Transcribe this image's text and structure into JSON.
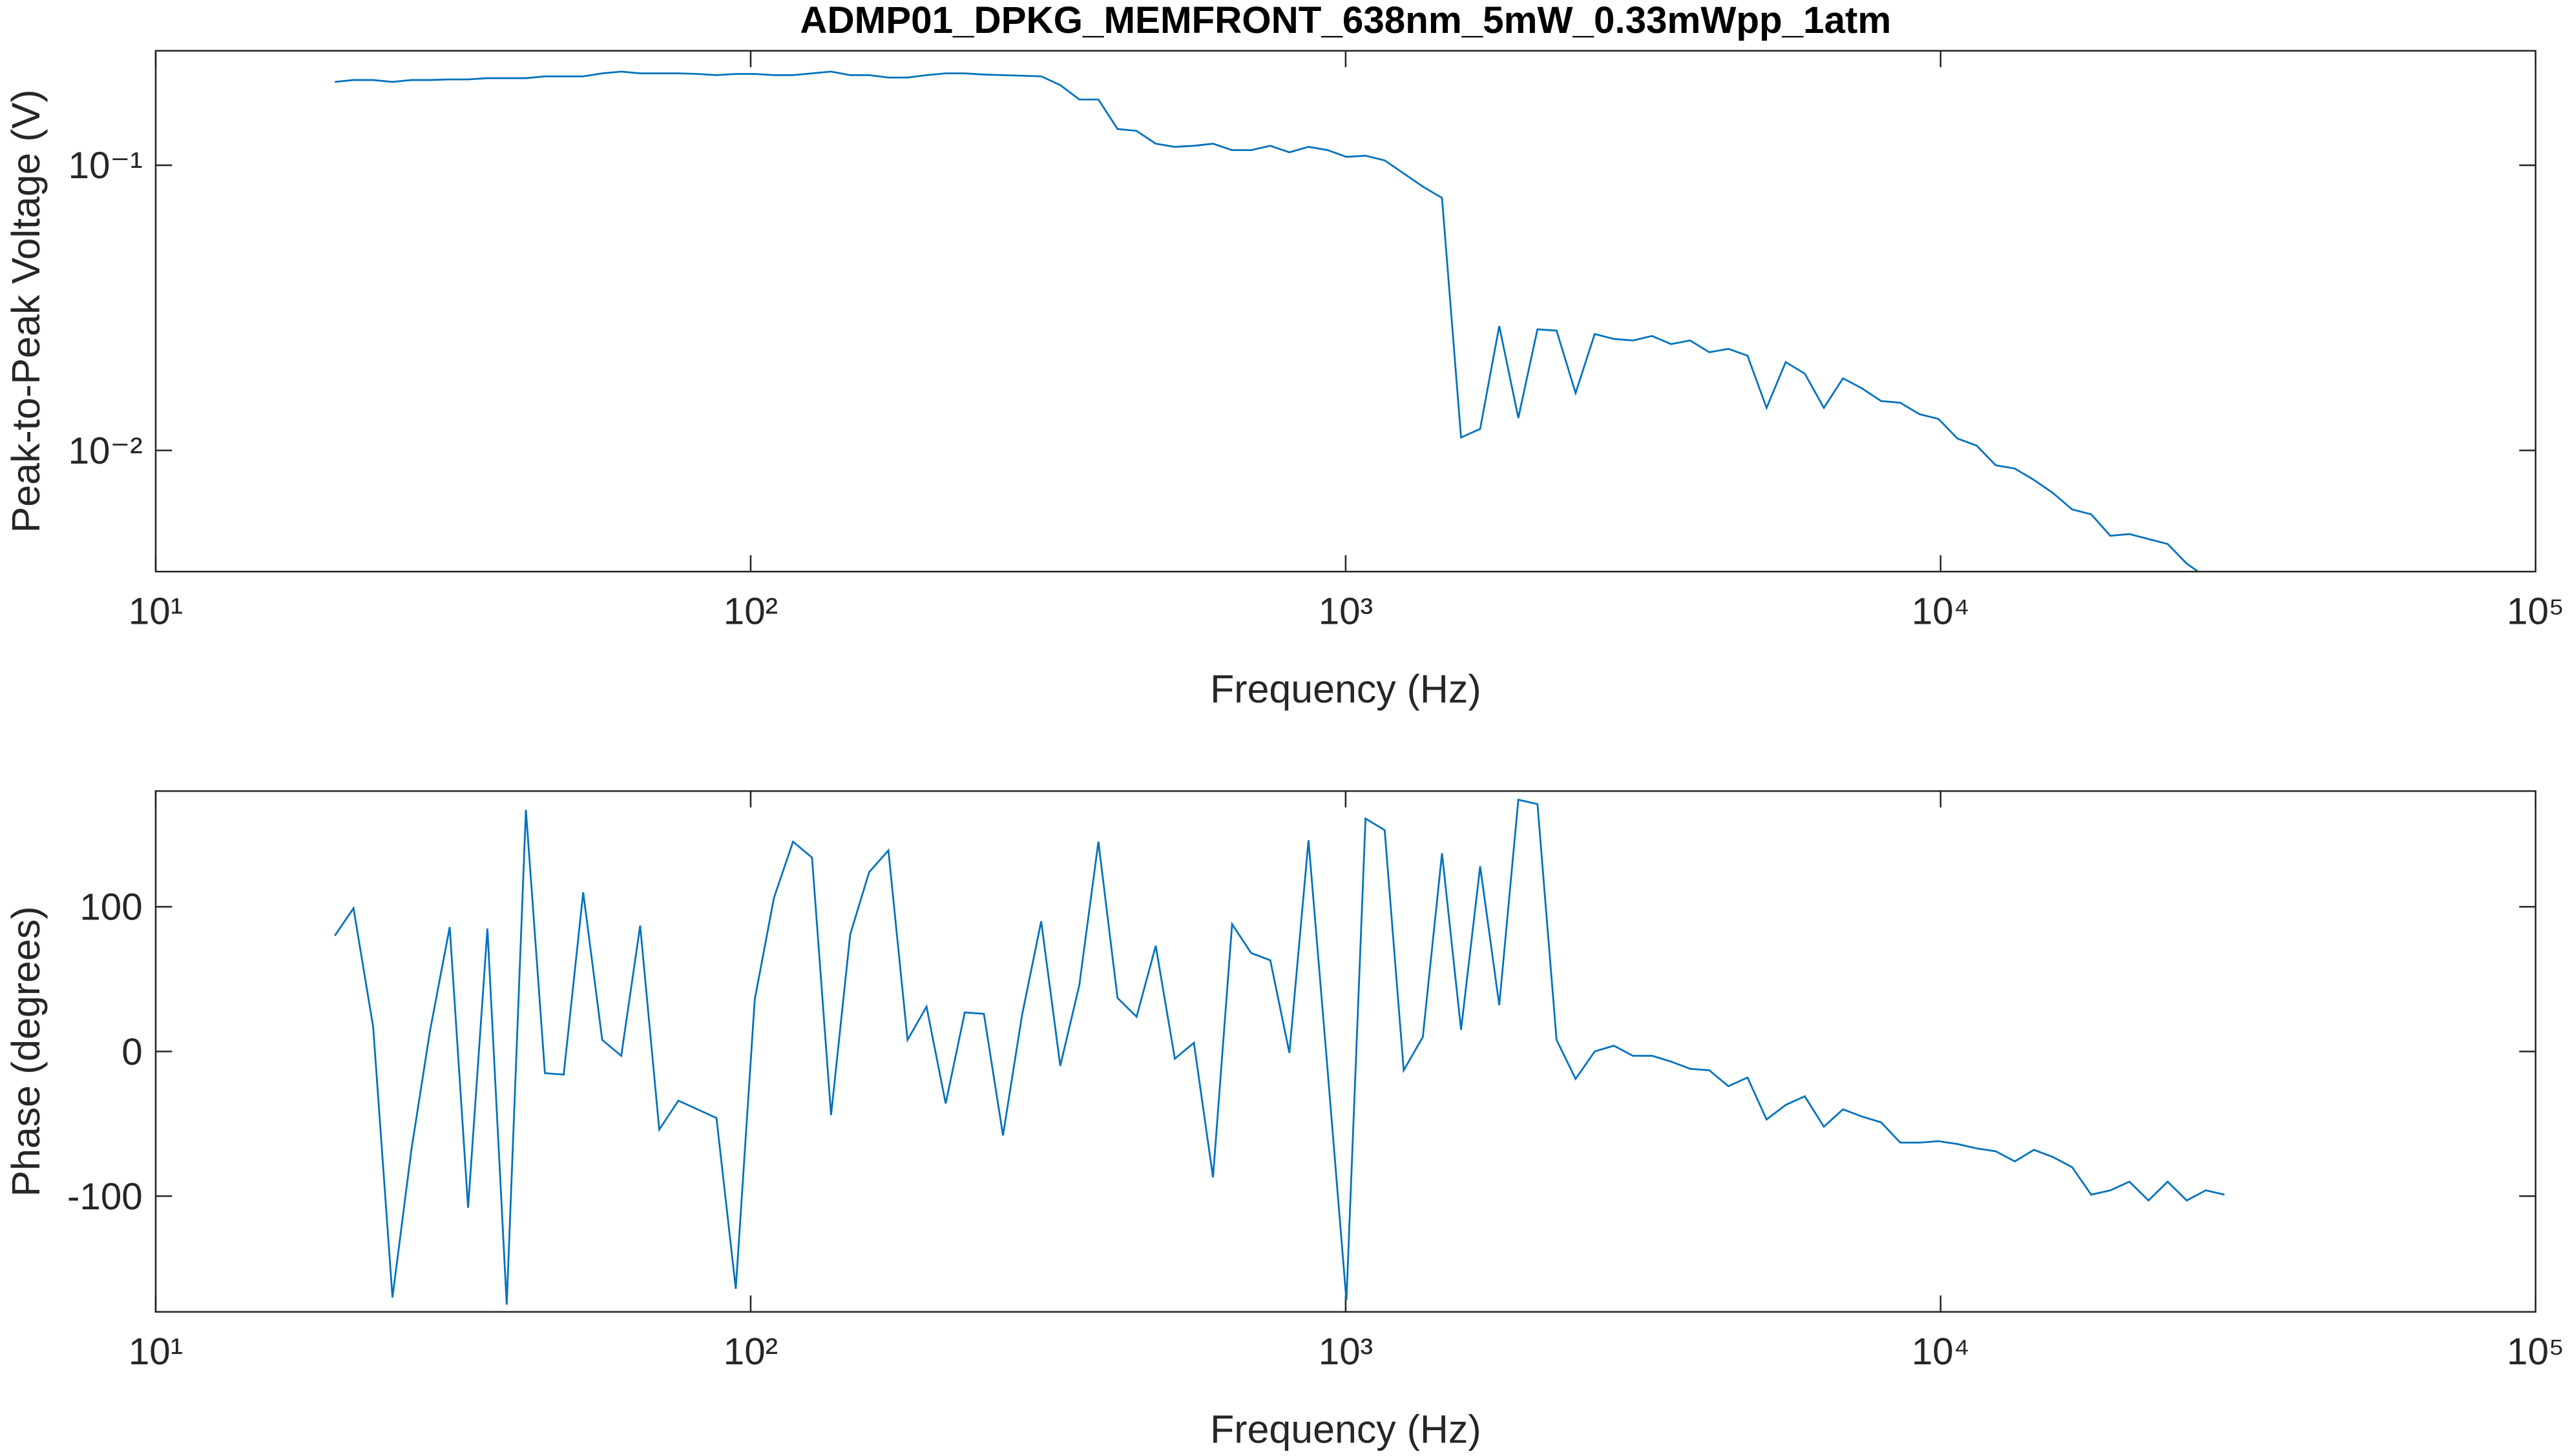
{
  "chart_data": [
    {
      "type": "line",
      "title": "ADMP01_DPKG_MEMFRONT_638nm_5mW_0.33mWpp_1atm",
      "xlabel": "Frequency (Hz)",
      "ylabel": "Peak-to-Peak Voltage (V)",
      "xscale": "log",
      "yscale": "log",
      "xlim": [
        10,
        100000
      ],
      "ylim": [
        0.00376,
        0.252
      ],
      "xticks": [
        {
          "value": 10,
          "label": "10¹"
        },
        {
          "value": 100,
          "label": "10²"
        },
        {
          "value": 1000,
          "label": "10³"
        },
        {
          "value": 10000,
          "label": "10⁴"
        },
        {
          "value": 100000,
          "label": "10⁵"
        }
      ],
      "yticks": [
        {
          "value": 0.01,
          "label": "10⁻²"
        },
        {
          "value": 0.1,
          "label": "10⁻¹"
        }
      ],
      "color": "#0072bd",
      "x": [
        20.0,
        21.5,
        23.2,
        25.0,
        26.9,
        28.9,
        31.2,
        33.5,
        36.1,
        38.9,
        41.9,
        45.1,
        48.5,
        52.3,
        56.3,
        60.6,
        65.2,
        70.2,
        75.6,
        81.4,
        87.6,
        94.4,
        101.6,
        109.4,
        117.8,
        126.8,
        136.5,
        147.0,
        158.2,
        170.4,
        183.5,
        197.5,
        212.7,
        229.0,
        246.6,
        265.5,
        285.8,
        307.8,
        331.4,
        356.8,
        384.1,
        413.6,
        445.3,
        479.5,
        516.3,
        555.9,
        598.5,
        644.4,
        693.9,
        747.1,
        804.4,
        866.1,
        932.6,
        1003,
        1080,
        1163,
        1252,
        1348,
        1452,
        1563,
        1683,
        1812,
        1951,
        2101,
        2262,
        2435,
        2622,
        2823,
        3040,
        3273,
        3524,
        3794,
        4085,
        4398,
        4736,
        5099,
        5490,
        5911,
        6365,
        6853,
        7378,
        7944,
        8554,
        9210,
        9916,
        10677,
        11496,
        12377,
        13327,
        14349,
        15450,
        16635,
        17911,
        19285,
        20764,
        22357,
        24072,
        25918,
        27906,
        30000
      ],
      "values": [
        0.196,
        0.199,
        0.199,
        0.196,
        0.199,
        0.199,
        0.2,
        0.2,
        0.202,
        0.202,
        0.202,
        0.205,
        0.205,
        0.205,
        0.21,
        0.213,
        0.21,
        0.21,
        0.21,
        0.209,
        0.207,
        0.209,
        0.209,
        0.207,
        0.207,
        0.21,
        0.213,
        0.207,
        0.207,
        0.203,
        0.203,
        0.207,
        0.21,
        0.21,
        0.208,
        0.207,
        0.206,
        0.205,
        0.191,
        0.17,
        0.17,
        0.134,
        0.132,
        0.119,
        0.116,
        0.117,
        0.119,
        0.113,
        0.113,
        0.117,
        0.111,
        0.116,
        0.113,
        0.107,
        0.108,
        0.104,
        0.0936,
        0.0842,
        0.0768,
        0.0111,
        0.0119,
        0.0273,
        0.013,
        0.0266,
        0.0263,
        0.0159,
        0.0256,
        0.0246,
        0.0243,
        0.0252,
        0.0236,
        0.0243,
        0.0221,
        0.0227,
        0.0215,
        0.0141,
        0.0204,
        0.0186,
        0.0141,
        0.0179,
        0.0165,
        0.0149,
        0.0147,
        0.0134,
        0.0129,
        0.011,
        0.0104,
        0.00887,
        0.00864,
        0.00788,
        0.00709,
        0.00621,
        0.00597,
        0.00502,
        0.00509,
        0.00489,
        0.0047,
        0.00401,
        0.0036,
        0.0033
      ]
    },
    {
      "type": "line",
      "xlabel": "Frequency (Hz)",
      "ylabel": "Phase (degrees)",
      "xscale": "log",
      "yscale": "linear",
      "xlim": [
        10,
        100000
      ],
      "ylim": [
        -180,
        180
      ],
      "xticks": [
        {
          "value": 10,
          "label": "10¹"
        },
        {
          "value": 100,
          "label": "10²"
        },
        {
          "value": 1000,
          "label": "10³"
        },
        {
          "value": 10000,
          "label": "10⁴"
        },
        {
          "value": 100000,
          "label": "10⁵"
        }
      ],
      "yticks": [
        -100,
        0,
        100
      ],
      "color": "#0072bd",
      "x": [
        20.0,
        21.5,
        23.2,
        25.0,
        26.9,
        28.9,
        31.2,
        33.5,
        36.1,
        38.9,
        41.9,
        45.1,
        48.5,
        52.3,
        56.3,
        60.6,
        65.2,
        70.2,
        75.6,
        81.4,
        87.6,
        94.4,
        101.6,
        109.4,
        117.8,
        126.8,
        136.5,
        147.0,
        158.2,
        170.4,
        183.5,
        197.5,
        212.7,
        229.0,
        246.6,
        265.5,
        285.8,
        307.8,
        331.4,
        356.8,
        384.1,
        413.6,
        445.3,
        479.5,
        516.3,
        555.9,
        598.5,
        644.4,
        693.9,
        747.1,
        804.4,
        866.1,
        932.6,
        1003,
        1080,
        1163,
        1252,
        1348,
        1452,
        1563,
        1683,
        1812,
        1951,
        2101,
        2262,
        2435,
        2622,
        2823,
        3040,
        3273,
        3524,
        3794,
        4085,
        4398,
        4736,
        5099,
        5490,
        5911,
        6365,
        6853,
        7378,
        7944,
        8554,
        9210,
        9916,
        10677,
        11496,
        12377,
        13327,
        14349,
        15450,
        16635,
        17911,
        19285,
        20764,
        22357,
        24072,
        25918,
        27906,
        30000
      ],
      "values": [
        80,
        99,
        17,
        -170,
        -68,
        14,
        86,
        -108,
        85,
        -175,
        167,
        -15,
        -16,
        110,
        8,
        -3,
        87,
        -54,
        -34,
        -40,
        -46,
        -164,
        36,
        106,
        145,
        134,
        -44,
        81,
        124,
        139,
        8,
        31,
        -36,
        27,
        26,
        -58,
        25,
        90,
        -10,
        46,
        145,
        37,
        24,
        73,
        -5,
        6,
        -87,
        88,
        68,
        63,
        -1,
        146,
        -13,
        -172,
        161,
        153,
        -13,
        10,
        137,
        15,
        128,
        32,
        174,
        171,
        8,
        -19,
        0,
        4,
        -3,
        -3,
        -7,
        -12,
        -13,
        -24,
        -18,
        -47,
        -37,
        -31,
        -52,
        -40,
        -45,
        -49,
        -63,
        -63,
        -62,
        -64,
        -67,
        -69,
        -76,
        -68,
        -73,
        -80,
        -99,
        -96,
        -90,
        -103,
        -90,
        -103,
        -96,
        -99
      ]
    }
  ]
}
